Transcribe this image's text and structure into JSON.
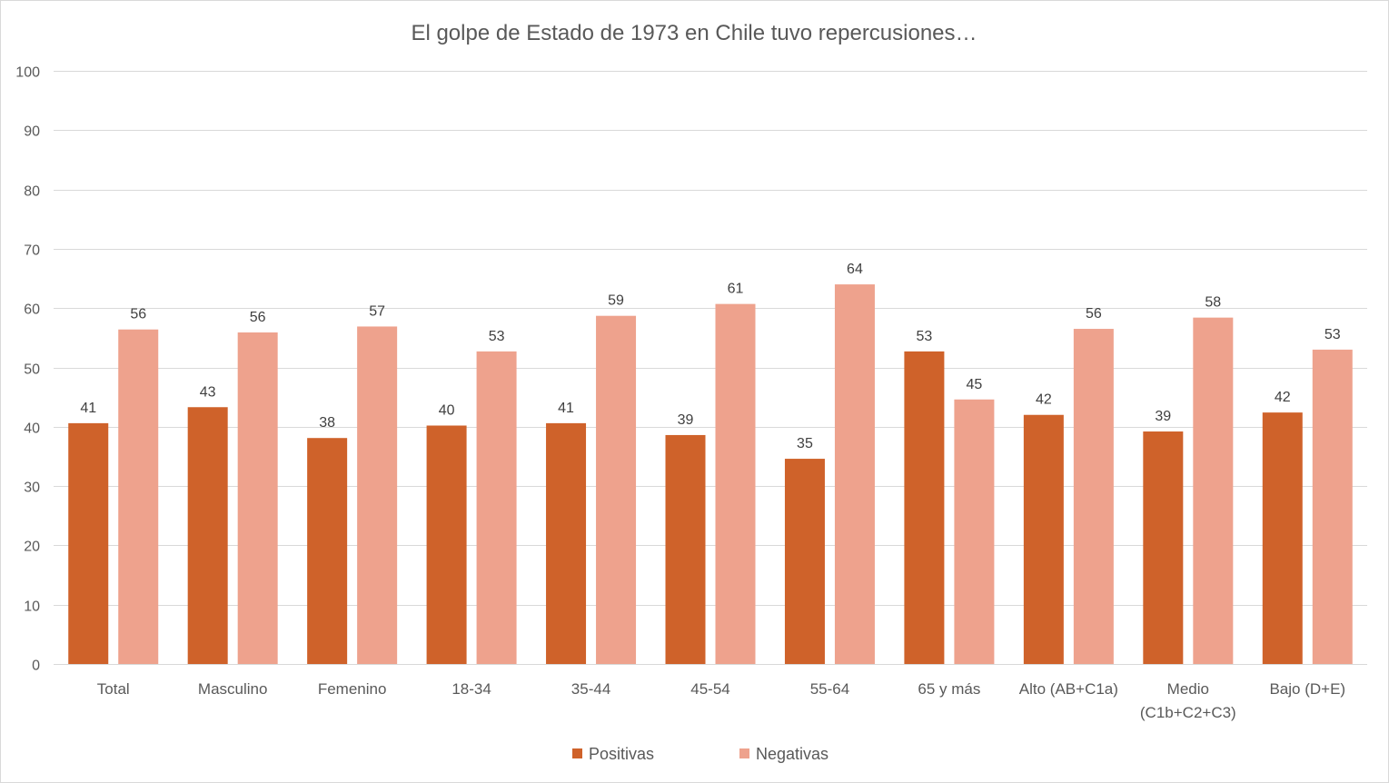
{
  "chart_data": {
    "type": "bar",
    "title": "El golpe de Estado de 1973 en Chile tuvo repercusiones…",
    "categories": [
      [
        "Total"
      ],
      [
        "Masculino"
      ],
      [
        "Femenino"
      ],
      [
        "18-34"
      ],
      [
        "35-44"
      ],
      [
        "45-54"
      ],
      [
        "55-64"
      ],
      [
        "65 y más"
      ],
      [
        "Alto (AB+C1a)"
      ],
      [
        "Medio",
        "(C1b+C2+C3)"
      ],
      [
        "Bajo (D+E)"
      ]
    ],
    "series": [
      {
        "name": "Positivas",
        "color": "#CF622A",
        "values": [
          40.6,
          43.3,
          38.1,
          40.2,
          40.6,
          38.6,
          34.6,
          52.7,
          42.0,
          39.2,
          42.4
        ],
        "labels": [
          "41",
          "43",
          "38",
          "40",
          "41",
          "39",
          "35",
          "53",
          "42",
          "39",
          "42"
        ]
      },
      {
        "name": "Negativas",
        "color": "#EEA28D",
        "values": [
          56.4,
          55.9,
          56.9,
          52.7,
          58.7,
          60.7,
          64.0,
          44.6,
          56.5,
          58.4,
          53.0
        ],
        "labels": [
          "56",
          "56",
          "57",
          "53",
          "59",
          "61",
          "64",
          "45",
          "56",
          "58",
          "53"
        ]
      }
    ],
    "ylim": [
      0,
      100
    ],
    "yticks": [
      0,
      10,
      20,
      30,
      40,
      50,
      60,
      70,
      80,
      90,
      100
    ],
    "xlabel": "",
    "ylabel": "",
    "grid": true,
    "legend_position": "bottom"
  }
}
